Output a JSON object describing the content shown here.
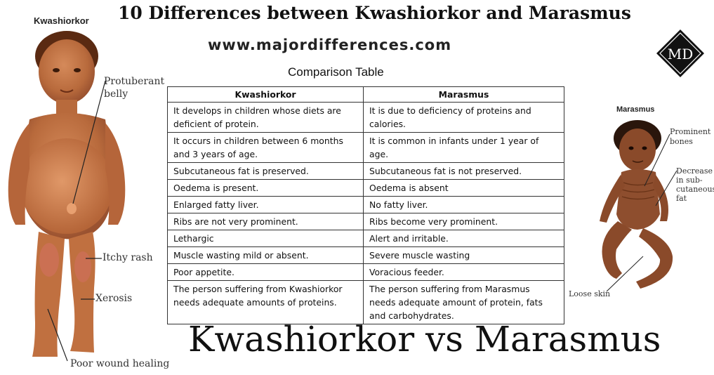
{
  "header": {
    "title": "10 Differences between Kwashiorkor and Marasmus",
    "website": "www.majordifferences.com",
    "table_caption": "Comparison Table",
    "logo_text": "MD",
    "footer_title": "Kwashiorkor vs Marasmus"
  },
  "left_figure": {
    "title": "Kwashiorkor",
    "labels": [
      "Protuberant",
      "belly",
      "Itchy rash",
      "Xerosis",
      "Poor wound healing"
    ]
  },
  "right_figure": {
    "title": "Marasmus",
    "labels": [
      "Prominent",
      "bones",
      "Decrease",
      "in sub-",
      "cutaneous",
      "fat",
      "Loose skin"
    ]
  },
  "table": {
    "headers": [
      "Kwashiorkor",
      "Marasmus"
    ],
    "rows": [
      [
        "It develops in children whose diets are deficient of protein.",
        "It is due to deficiency of proteins and calories."
      ],
      [
        "It occurs in children between 6 months and 3 years of age.",
        "It is common in infants under 1 year of age."
      ],
      [
        "Subcutaneous fat is preserved.",
        "Subcutaneous fat is not preserved."
      ],
      [
        "Oedema is present.",
        "Oedema is absent"
      ],
      [
        "Enlarged fatty liver.",
        "No fatty liver."
      ],
      [
        "Ribs are not very prominent.",
        "Ribs become very prominent."
      ],
      [
        "Lethargic",
        "Alert and irritable."
      ],
      [
        "Muscle wasting mild or absent.",
        "Severe muscle wasting"
      ],
      [
        "Poor appetite.",
        "Voracious feeder."
      ],
      [
        "The person suffering from Kwashiorkor needs adequate amounts of proteins.",
        "The person suffering from Marasmus needs adequate amount of protein, fats and carbohydrates."
      ]
    ]
  }
}
